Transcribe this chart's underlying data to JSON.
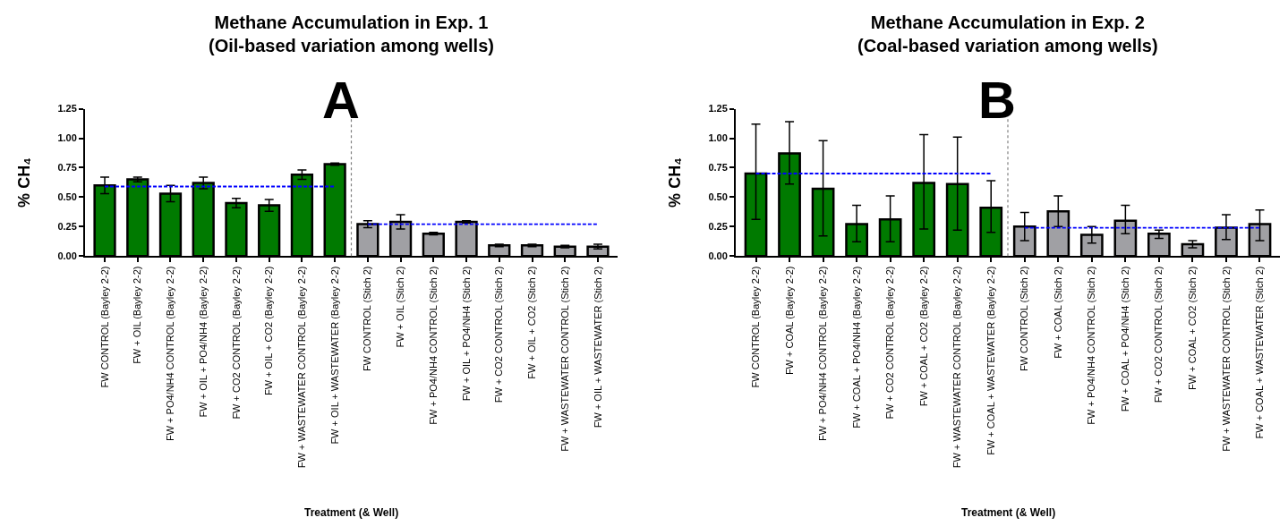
{
  "chart_data": [
    {
      "type": "bar",
      "title": "Methane Accumulation in Exp. 1\n(Oil-based variation among wells)",
      "xlabel": "Treatment (& Well)",
      "ylabel": "% CH₄",
      "categories": [
        "FW CONTROL (Bayley 2-2)",
        "FW + OIL (Bayley 2-2)",
        "FW + PO4/NH4 CONTROL (Bayley 2-2)",
        "FW + OIL + PO4/NH4 (Bayley 2-2)",
        "FW + CO2 CONTROL (Bayley 2-2)",
        "FW + OIL + CO2 (Bayley 2-2)",
        "FW + WASTEWATER CONTROL (Bayley 2-2)",
        "FW + OIL + WASTEWATER (Bayley 2-2)",
        "FW CONTROL (Stich 2)",
        "FW + OIL (Stich 2)",
        "FW + PO4/NH4 CONTROL (Stich 2)",
        "FW + OIL + PO4/NH4 (Stich 2)",
        "FW + CO2 CONTROL (Stich 2)",
        "FW + OIL + CO2 (Stich 2)",
        "FW + WASTEWATER CONTROL (Stich 2)",
        "FW + OIL + WASTEWATER (Stich 2)"
      ],
      "series": [
        {
          "values": [
            0.6,
            0.65,
            0.53,
            0.62,
            0.45,
            0.43,
            0.69,
            0.78,
            0.27,
            0.29,
            0.19,
            0.29,
            0.09,
            0.09,
            0.08,
            0.08
          ],
          "colors": [
            "#007a00",
            "#007a00",
            "#007a00",
            "#007a00",
            "#007a00",
            "#007a00",
            "#007a00",
            "#007a00",
            "#a0a0a4",
            "#a0a0a4",
            "#a0a0a4",
            "#a0a0a4",
            "#a0a0a4",
            "#a0a0a4",
            "#a0a0a4",
            "#a0a0a4"
          ],
          "errors": [
            0.07,
            0.02,
            0.07,
            0.05,
            0.04,
            0.05,
            0.04,
            0.01,
            0.03,
            0.06,
            0.01,
            0.01,
            0.01,
            0.01,
            0.01,
            0.02
          ]
        },
        {
          "type": "line",
          "x": [
            "FW CONTROL (Bayley 2-2)",
            "FW + OIL + WASTEWATER (Bayley 2-2)"
          ],
          "values": [
            0.59,
            0.59
          ],
          "color": "#0000ff",
          "line_style": "dashed"
        },
        {
          "type": "line",
          "x": [
            "FW CONTROL (Stich 2)",
            "FW + OIL + WASTEWATER (Stich 2)"
          ],
          "values": [
            0.27,
            0.27
          ],
          "color": "#0000ff",
          "line_style": "dashed"
        }
      ],
      "annotations": [
        "A"
      ],
      "ylim": [
        0,
        1.25
      ],
      "yticks": [
        {
          "value": 0,
          "label": "0.00"
        },
        {
          "value": 0.25,
          "label": "0.25"
        },
        {
          "value": 0.5,
          "label": "0.50"
        },
        {
          "value": 0.75,
          "label": "0.75"
        },
        {
          "value": 1,
          "label": "1.00"
        },
        {
          "value": 1.25,
          "label": "1.25"
        }
      ],
      "tick_labels": true
    },
    {
      "type": "bar",
      "title": "Methane Accumulation in Exp. 2\n(Coal-based variation among wells)",
      "xlabel": "Treatment (& Well)",
      "ylabel": "% CH₄",
      "categories": [
        "FW CONTROL (Bayley 2-2)",
        "FW + COAL (Bayley 2-2)",
        "FW + PO4/NH4 CONTROL (Bayley 2-2)",
        "FW + COAL + PO4/NH4 (Bayley 2-2)",
        "FW + CO2 CONTROL (Bayley 2-2)",
        "FW + COAL + CO2 (Bayley 2-2)",
        "FW + WASTEWATER CONTROL (Bayley 2-2)",
        "FW + COAL + WASTEWATER (Bayley 2-2)",
        "FW CONTROL (Stich 2)",
        "FW + COAL (Stich 2)",
        "FW + PO4/NH4 CONTROL (Stich 2)",
        "FW + COAL + PO4/NH4 (Stich 2)",
        "FW + CO2 CONTROL (Stich 2)",
        "FW + COAL + CO2 (Stich 2)",
        "FW + WASTEWATER CONTROL (Stich 2)",
        "FW + COAL + WASTEWATER (Stich 2)"
      ],
      "series": [
        {
          "values": [
            0.7,
            0.87,
            0.57,
            0.27,
            0.31,
            0.62,
            0.61,
            0.41,
            0.25,
            0.38,
            0.18,
            0.3,
            0.19,
            0.1,
            0.24,
            0.27
          ],
          "colors": [
            "#007a00",
            "#007a00",
            "#007a00",
            "#007a00",
            "#007a00",
            "#007a00",
            "#007a00",
            "#007a00",
            "#a0a0a4",
            "#a0a0a4",
            "#a0a0a4",
            "#a0a0a4",
            "#a0a0a4",
            "#a0a0a4",
            "#a0a0a4",
            "#a0a0a4"
          ],
          "errors": [
            [
              0.31,
              1.12
            ],
            [
              0.61,
              1.14
            ],
            [
              0.17,
              0.98
            ],
            [
              0.12,
              0.43
            ],
            [
              0.12,
              0.51
            ],
            [
              0.23,
              1.03
            ],
            [
              0.22,
              1.01
            ],
            [
              0.2,
              0.64
            ],
            [
              0.13,
              0.37
            ],
            [
              0.25,
              0.51
            ],
            [
              0.11,
              0.25
            ],
            [
              0.19,
              0.43
            ],
            [
              0.15,
              0.22
            ],
            [
              0.07,
              0.13
            ],
            [
              0.14,
              0.35
            ],
            [
              0.13,
              0.39
            ]
          ]
        },
        {
          "type": "line",
          "x": [
            "FW CONTROL (Bayley 2-2)",
            "FW + COAL + WASTEWATER (Bayley 2-2)"
          ],
          "values": [
            0.7,
            0.7
          ],
          "color": "#0000ff",
          "line_style": "dashed"
        },
        {
          "type": "line",
          "x": [
            "FW CONTROL (Stich 2)",
            "FW + COAL + WASTEWATER (Stich 2)"
          ],
          "values": [
            0.24,
            0.24
          ],
          "color": "#0000ff",
          "line_style": "dashed"
        }
      ],
      "annotations": [
        "B"
      ],
      "ylim": [
        0,
        1.25
      ],
      "yticks": [
        {
          "value": 0,
          "label": "0.00"
        },
        {
          "value": 0.25,
          "label": "0.25"
        },
        {
          "value": 0.5,
          "label": "0.50"
        },
        {
          "value": 0.75,
          "label": "0.75"
        },
        {
          "value": 1,
          "label": "1.00"
        },
        {
          "value": 1.25,
          "label": "1.25"
        }
      ],
      "tick_labels": true
    }
  ]
}
